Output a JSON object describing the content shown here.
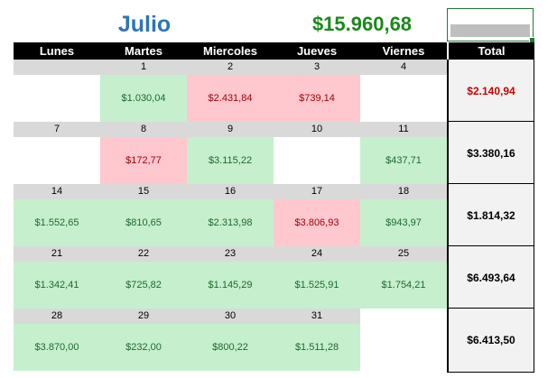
{
  "header": {
    "month": "Julio",
    "total": "$15.960,68"
  },
  "days": [
    "Lunes",
    "Martes",
    "Miercoles",
    "Jueves",
    "Viernes"
  ],
  "total_label": "Total",
  "weeks": [
    {
      "nums": [
        "",
        "1",
        "2",
        "3",
        "4"
      ],
      "amounts": [
        "",
        "$1.030,04",
        "$2.431,84",
        "$739,14",
        ""
      ],
      "status": [
        "none",
        "gain",
        "loss",
        "loss",
        "none"
      ],
      "total": "$2.140,94",
      "total_negative": true
    },
    {
      "nums": [
        "7",
        "8",
        "9",
        "10",
        "11"
      ],
      "amounts": [
        "",
        "$172,77",
        "$3.115,22",
        "",
        "$437,71"
      ],
      "status": [
        "none",
        "loss",
        "gain",
        "none",
        "gain"
      ],
      "total": "$3.380,16",
      "total_negative": false
    },
    {
      "nums": [
        "14",
        "15",
        "16",
        "17",
        "18"
      ],
      "amounts": [
        "$1.552,65",
        "$810,65",
        "$2.313,98",
        "$3.806,93",
        "$943,97"
      ],
      "status": [
        "gain",
        "gain",
        "gain",
        "loss",
        "gain"
      ],
      "total": "$1.814,32",
      "total_negative": false
    },
    {
      "nums": [
        "21",
        "22",
        "23",
        "24",
        "25"
      ],
      "amounts": [
        "$1.342,41",
        "$725,82",
        "$1.145,29",
        "$1.525,91",
        "$1.754,21"
      ],
      "status": [
        "gain",
        "gain",
        "gain",
        "gain",
        "gain"
      ],
      "total": "$6.493,64",
      "total_negative": false
    },
    {
      "nums": [
        "28",
        "29",
        "30",
        "31",
        ""
      ],
      "amounts": [
        "$3.870,00",
        "$232,00",
        "$800,22",
        "$1.511,28",
        ""
      ],
      "status": [
        "gain",
        "gain",
        "gain",
        "gain",
        "blank"
      ],
      "total": "$6.413,50",
      "total_negative": false
    }
  ],
  "colors": {
    "month_title": "#2e75b6",
    "grand_total": "#1a8a1a",
    "gain_fill": "#c6efce",
    "gain_text": "#1d6b2b",
    "loss_fill": "#ffc7ce",
    "loss_text": "#9c0006",
    "negative_total": "#cc0000",
    "header_fill": "#000000",
    "date_fill": "#d9d9d9",
    "total_fill": "#f2f2f2"
  }
}
